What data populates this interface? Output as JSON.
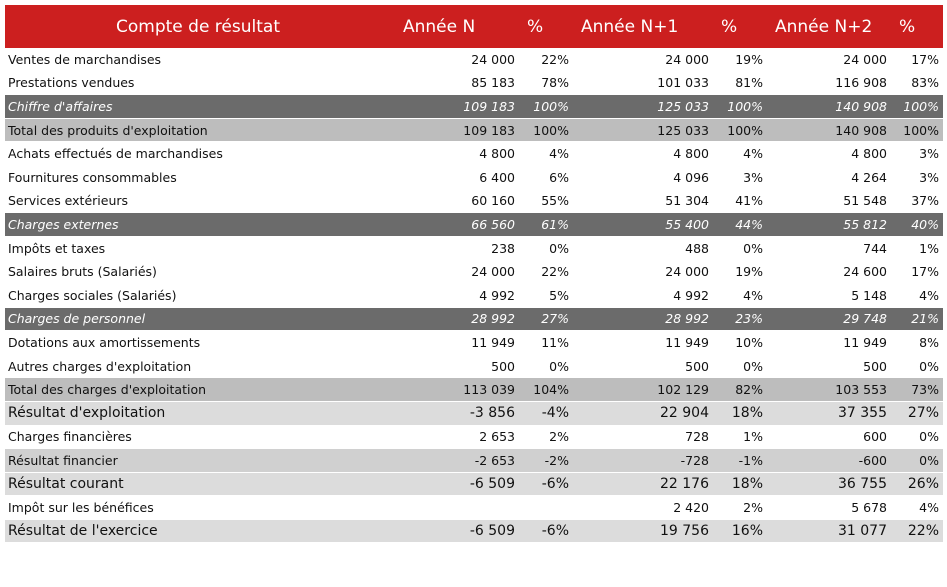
{
  "header": {
    "title": "Compte de résultat",
    "col_n": "Année N",
    "col_n_pct": "%",
    "col_n1": "Année N+1",
    "col_n1_pct": "%",
    "col_n2": "Année N+2",
    "col_n2_pct": "%"
  },
  "colors": {
    "header_bg": "#cc1f1f",
    "subtotal_bg": "#6b6b6b",
    "total_bg": "#bdbdbd",
    "result_bg": "#dcdcdc"
  },
  "rows": [
    {
      "style": "normal",
      "label": "Ventes de marchandises",
      "n": "24 000",
      "n_pct": "22%",
      "n1": "24 000",
      "n1_pct": "19%",
      "n2": "24 000",
      "n2_pct": "17%"
    },
    {
      "style": "normal",
      "label": "Prestations vendues",
      "n": "85 183",
      "n_pct": "78%",
      "n1": "101 033",
      "n1_pct": "81%",
      "n2": "116 908",
      "n2_pct": "83%"
    },
    {
      "style": "sub",
      "label": "Chiffre d'affaires",
      "n": "109 183",
      "n_pct": "100%",
      "n1": "125 033",
      "n1_pct": "100%",
      "n2": "140 908",
      "n2_pct": "100%"
    },
    {
      "style": "total",
      "label": "Total des produits d'exploitation",
      "n": "109 183",
      "n_pct": "100%",
      "n1": "125 033",
      "n1_pct": "100%",
      "n2": "140 908",
      "n2_pct": "100%"
    },
    {
      "style": "normal",
      "label": "Achats effectués de marchandises",
      "n": "4 800",
      "n_pct": "4%",
      "n1": "4 800",
      "n1_pct": "4%",
      "n2": "4 800",
      "n2_pct": "3%"
    },
    {
      "style": "normal",
      "label": "Fournitures consommables",
      "n": "6 400",
      "n_pct": "6%",
      "n1": "4 096",
      "n1_pct": "3%",
      "n2": "4 264",
      "n2_pct": "3%"
    },
    {
      "style": "normal",
      "label": "Services extérieurs",
      "n": "60 160",
      "n_pct": "55%",
      "n1": "51 304",
      "n1_pct": "41%",
      "n2": "51 548",
      "n2_pct": "37%"
    },
    {
      "style": "sub",
      "label": "Charges externes",
      "n": "66 560",
      "n_pct": "61%",
      "n1": "55 400",
      "n1_pct": "44%",
      "n2": "55 812",
      "n2_pct": "40%"
    },
    {
      "style": "normal",
      "label": "Impôts et taxes",
      "n": "238",
      "n_pct": "0%",
      "n1": "488",
      "n1_pct": "0%",
      "n2": "744",
      "n2_pct": "1%"
    },
    {
      "style": "normal",
      "label": "Salaires bruts (Salariés)",
      "n": "24 000",
      "n_pct": "22%",
      "n1": "24 000",
      "n1_pct": "19%",
      "n2": "24 600",
      "n2_pct": "17%"
    },
    {
      "style": "normal",
      "label": "Charges sociales (Salariés)",
      "n": "4 992",
      "n_pct": "5%",
      "n1": "4 992",
      "n1_pct": "4%",
      "n2": "5 148",
      "n2_pct": "4%"
    },
    {
      "style": "sub",
      "label": "Charges de personnel",
      "n": "28 992",
      "n_pct": "27%",
      "n1": "28 992",
      "n1_pct": "23%",
      "n2": "29 748",
      "n2_pct": "21%"
    },
    {
      "style": "normal",
      "label": "Dotations aux amortissements",
      "n": "11 949",
      "n_pct": "11%",
      "n1": "11 949",
      "n1_pct": "10%",
      "n2": "11 949",
      "n2_pct": "8%"
    },
    {
      "style": "normal",
      "label": "Autres charges d'exploitation",
      "n": "500",
      "n_pct": "0%",
      "n1": "500",
      "n1_pct": "0%",
      "n2": "500",
      "n2_pct": "0%"
    },
    {
      "style": "total",
      "label": "Total des charges d'exploitation",
      "n": "113 039",
      "n_pct": "104%",
      "n1": "102 129",
      "n1_pct": "82%",
      "n2": "103 553",
      "n2_pct": "73%"
    },
    {
      "style": "result",
      "label": "Résultat d'exploitation",
      "n": "-3 856",
      "n_pct": "-4%",
      "n1": "22 904",
      "n1_pct": "18%",
      "n2": "37 355",
      "n2_pct": "27%"
    },
    {
      "style": "normal",
      "label": "Charges financières",
      "n": "2 653",
      "n_pct": "2%",
      "n1": "728",
      "n1_pct": "1%",
      "n2": "600",
      "n2_pct": "0%"
    },
    {
      "style": "fin",
      "label": "Résultat financier",
      "n": "-2 653",
      "n_pct": "-2%",
      "n1": "-728",
      "n1_pct": "-1%",
      "n2": "-600",
      "n2_pct": "0%"
    },
    {
      "style": "result",
      "label": "Résultat courant",
      "n": "-6 509",
      "n_pct": "-6%",
      "n1": "22 176",
      "n1_pct": "18%",
      "n2": "36 755",
      "n2_pct": "26%"
    },
    {
      "style": "normal",
      "label": "Impôt sur les bénéfices",
      "n": "",
      "n_pct": "",
      "n1": "2 420",
      "n1_pct": "2%",
      "n2": "5 678",
      "n2_pct": "4%"
    },
    {
      "style": "result",
      "label": "Résultat de l'exercice",
      "n": "-6 509",
      "n_pct": "-6%",
      "n1": "19 756",
      "n1_pct": "16%",
      "n2": "31 077",
      "n2_pct": "22%"
    }
  ]
}
